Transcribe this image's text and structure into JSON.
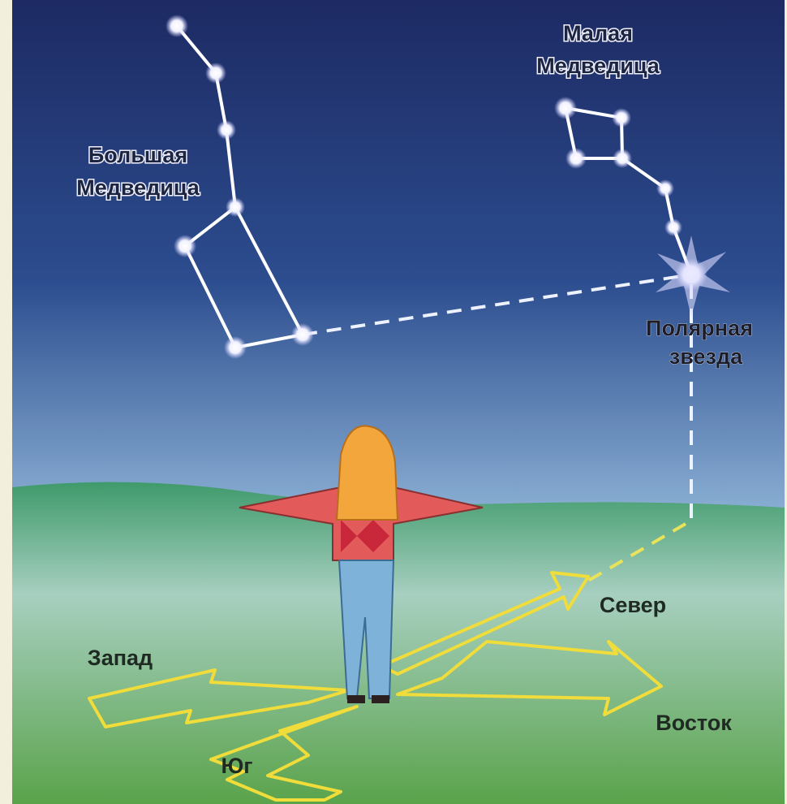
{
  "labels": {
    "big_dipper": [
      "Большая",
      "Медведица"
    ],
    "little_dipper": [
      "Малая",
      "Медведица"
    ],
    "polaris": [
      "Полярная",
      "звезда"
    ],
    "north": "Север",
    "west": "Запад",
    "east": "Восток",
    "south": "Юг"
  }
}
